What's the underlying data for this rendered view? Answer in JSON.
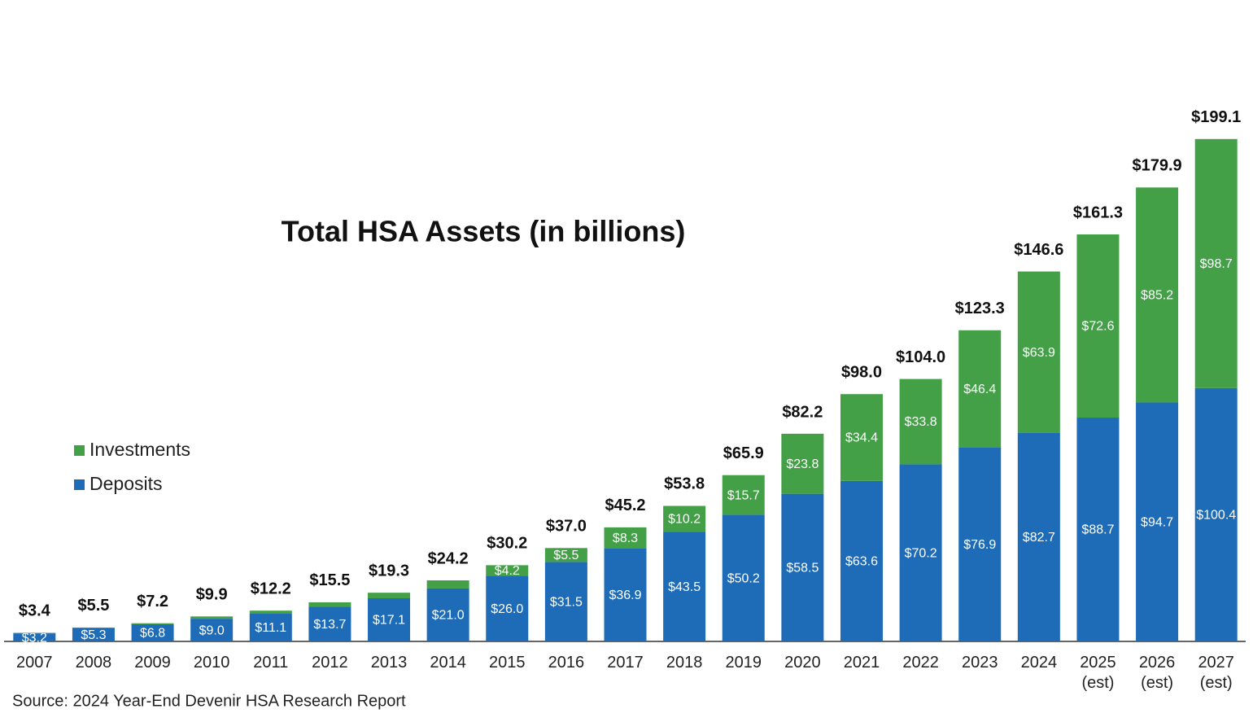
{
  "chart_data": {
    "type": "stacked_bar",
    "title": "Total HSA Assets (in billions)",
    "source": "Source: 2024 Year-End Devenir HSA Research Report",
    "categories": [
      "2007",
      "2008",
      "2009",
      "2010",
      "2011",
      "2012",
      "2013",
      "2014",
      "2015",
      "2016",
      "2017",
      "2018",
      "2019",
      "2020",
      "2021",
      "2022",
      "2023",
      "2024",
      "2025 (est)",
      "2026 (est)",
      "2027 (est)"
    ],
    "ylim": [
      0,
      200
    ],
    "series": [
      {
        "name": "Deposits",
        "color": "#1e6bb8",
        "values": [
          3.2,
          5.3,
          6.8,
          9.0,
          11.1,
          13.7,
          17.1,
          21.0,
          26.0,
          31.5,
          36.9,
          43.5,
          50.2,
          58.5,
          63.6,
          70.2,
          76.9,
          82.7,
          88.7,
          94.7,
          100.4
        ],
        "value_labels": [
          "$3.2",
          "$5.3",
          "$6.8",
          "$9.0",
          "$11.1",
          "$13.7",
          "$17.1",
          "$21.0",
          "$26.0",
          "$31.5",
          "$36.9",
          "$43.5",
          "$50.2",
          "$58.5",
          "$63.6",
          "$70.2",
          "$76.9",
          "$82.7",
          "$88.7",
          "$94.7",
          "$100.4"
        ]
      },
      {
        "name": "Investments",
        "color": "#43a047",
        "values": [
          0.2,
          0.2,
          0.4,
          0.9,
          1.1,
          1.8,
          2.2,
          3.2,
          4.2,
          5.5,
          8.3,
          10.2,
          15.7,
          23.8,
          34.4,
          33.8,
          46.4,
          63.9,
          72.6,
          85.2,
          98.7
        ],
        "value_labels": [
          null,
          null,
          null,
          null,
          null,
          null,
          null,
          null,
          "$4.2",
          "$5.5",
          "$8.3",
          "$10.2",
          "$15.7",
          "$23.8",
          "$34.4",
          "$33.8",
          "$46.4",
          "$63.9",
          "$72.6",
          "$85.2",
          "$98.7"
        ]
      }
    ],
    "totals": [
      3.4,
      5.5,
      7.2,
      9.9,
      12.2,
      15.5,
      19.3,
      24.2,
      30.2,
      37.0,
      45.2,
      53.8,
      65.9,
      82.2,
      98.0,
      104.0,
      123.3,
      146.6,
      161.3,
      179.9,
      199.1
    ],
    "total_labels": [
      "$3.4",
      "$5.5",
      "$7.2",
      "$9.9",
      "$12.2",
      "$15.5",
      "$19.3",
      "$24.2",
      "$30.2",
      "$37.0",
      "$45.2",
      "$53.8",
      "$65.9",
      "$82.2",
      "$98.0",
      "$104.0",
      "$123.3",
      "$146.6",
      "$161.3",
      "$179.9",
      "$199.1"
    ]
  }
}
